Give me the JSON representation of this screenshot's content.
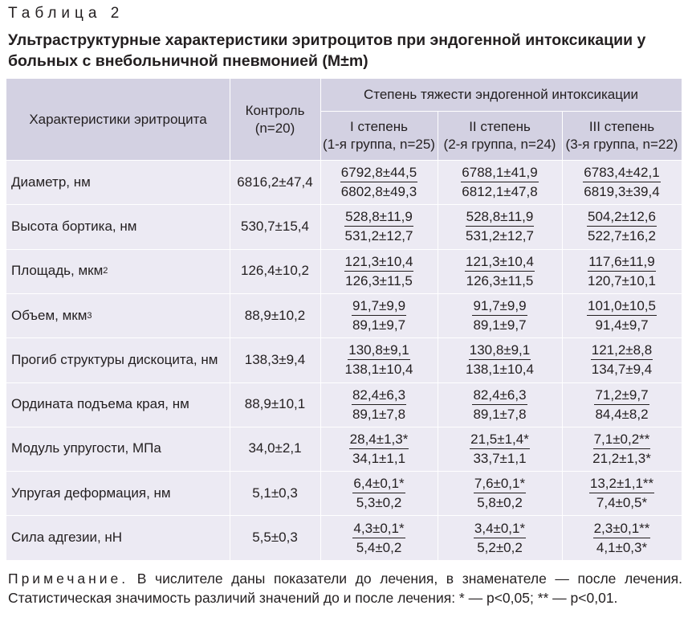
{
  "table_label": "Таблица 2",
  "title": "Ультраструктурные характеристики эритроцитов при эндогенной интоксикации у больных с внебольничной пневмонией (M±m)",
  "header": {
    "characteristic": "Характеристики эритроцита",
    "control": "Контроль\n(n=20)",
    "severity": "Степень тяжести эндогенной интоксикации",
    "groups": [
      "I степень\n(1-я группа, n=25)",
      "II степень\n(2-я группа, n=24)",
      "III степень\n(3-я группа, n=22)"
    ]
  },
  "rows": [
    {
      "label": "Диаметр, нм",
      "sup": "",
      "control": "6816,2±47,4",
      "groups": [
        [
          "6792,8±44,5",
          "6802,8±49,3"
        ],
        [
          "6788,1±41,9",
          "6812,1±47,8"
        ],
        [
          "6783,4±42,1",
          "6819,3±39,4"
        ]
      ]
    },
    {
      "label": "Высота бортика, нм",
      "sup": "",
      "control": "530,7±15,4",
      "groups": [
        [
          "528,8±11,9",
          "531,2±12,7"
        ],
        [
          "528,8±11,9",
          "531,2±12,7"
        ],
        [
          "504,2±12,6",
          "522,7±16,2"
        ]
      ]
    },
    {
      "label": "Площадь, мкм",
      "sup": "2",
      "control": "126,4±10,2",
      "groups": [
        [
          "121,3±10,4",
          "126,3±11,5"
        ],
        [
          "121,3±10,4",
          "126,3±11,5"
        ],
        [
          "117,6±11,9",
          "120,7±10,1"
        ]
      ]
    },
    {
      "label": "Объем, мкм",
      "sup": "3",
      "control": "88,9±10,2",
      "groups": [
        [
          "91,7±9,9",
          "89,1±9,7"
        ],
        [
          "91,7±9,9",
          "89,1±9,7"
        ],
        [
          "101,0±10,5",
          "91,4±9,7"
        ]
      ]
    },
    {
      "label": "Прогиб структуры дискоцита, нм",
      "sup": "",
      "control": "138,3±9,4",
      "groups": [
        [
          "130,8±9,1",
          "138,1±10,4"
        ],
        [
          "130,8±9,1",
          "138,1±10,4"
        ],
        [
          "121,2±8,8",
          "134,7±9,4"
        ]
      ]
    },
    {
      "label": "Ордината подъема края, нм",
      "sup": "",
      "control": "88,9±10,1",
      "groups": [
        [
          "82,4±6,3",
          "89,1±7,8"
        ],
        [
          "82,4±6,3",
          "89,1±7,8"
        ],
        [
          "71,2±9,7",
          "84,4±8,2"
        ]
      ]
    },
    {
      "label": "Модуль упругости, МПа",
      "sup": "",
      "control": "34,0±2,1",
      "groups": [
        [
          "28,4±1,3*",
          "34,1±1,1"
        ],
        [
          "21,5±1,4*",
          "33,7±1,1"
        ],
        [
          "7,1±0,2**",
          "21,2±1,3*"
        ]
      ]
    },
    {
      "label": "Упругая деформация, нм",
      "sup": "",
      "control": "5,1±0,3",
      "groups": [
        [
          "6,4±0,1*",
          "5,3±0,2"
        ],
        [
          "7,6±0,1*",
          "5,8±0,2"
        ],
        [
          "13,2±1,1**",
          "7,4±0,5*"
        ]
      ]
    },
    {
      "label": "Сила адгезии, нН",
      "sup": "",
      "control": "5,5±0,3",
      "groups": [
        [
          "4,3±0,1*",
          "5,4±0,2"
        ],
        [
          "3,4±0,1*",
          "5,2±0,2"
        ],
        [
          "2,3±0,1**",
          "4,1±0,3*"
        ]
      ]
    }
  ],
  "note": {
    "label": "Примечание.",
    "text": "В числителе даны показатели до лечения, в знаменателе — после лечения. Статистическая значимость различий значений до и после лечения: * — p<0,05; ** — p<0,01."
  },
  "colors": {
    "header_bg": "#d3d1e2",
    "body_bg": "#eceaf3",
    "text": "#231f20"
  }
}
